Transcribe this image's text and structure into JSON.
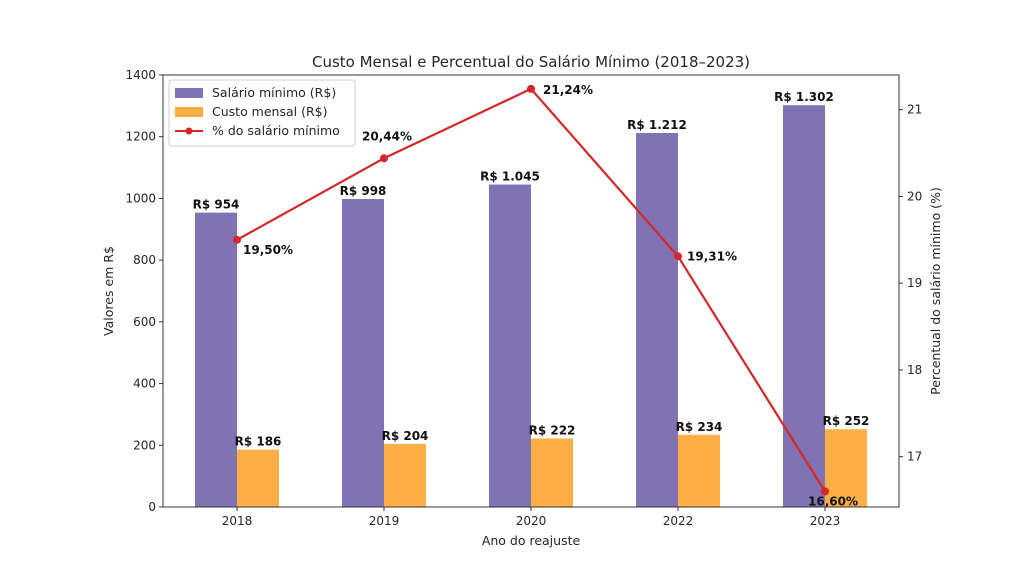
{
  "chart_data": {
    "type": "bar",
    "title": "Custo Mensal e Percentual do Salário Mínimo (2018–2023)",
    "xlabel": "Ano do reajuste",
    "ylabel": "Valores em R$",
    "ylabel_right": "Percentual do salário mínimo (%)",
    "categories": [
      "2018",
      "2019",
      "2020",
      "2022",
      "2023"
    ],
    "ylim": [
      0,
      1400
    ],
    "y_ticks": [
      0,
      200,
      400,
      600,
      800,
      1000,
      1200,
      1400
    ],
    "ylim_right": [
      16.42,
      21.4
    ],
    "y_ticks_right": [
      17,
      18,
      19,
      20,
      21
    ],
    "grid": false,
    "legend_position": "top-left",
    "series": [
      {
        "name": "Salário mínimo (R$)",
        "kind": "bar",
        "axis": "left",
        "color": "#8172b3",
        "values": [
          954,
          998,
          1045,
          1212,
          1302
        ],
        "labels": [
          "R$ 954",
          "R$ 998",
          "R$ 1.045",
          "R$ 1.212",
          "R$ 1.302"
        ]
      },
      {
        "name": "Custo mensal (R$)",
        "kind": "bar",
        "axis": "left",
        "color": "#fdae45",
        "values": [
          186,
          204,
          222,
          234,
          252
        ],
        "labels": [
          "R$ 186",
          "R$ 204",
          "R$ 222",
          "R$ 234",
          "R$ 252"
        ]
      },
      {
        "name": "% do salário mínimo",
        "kind": "line",
        "axis": "right",
        "color": "#d62728",
        "values": [
          19.5,
          20.44,
          21.24,
          19.31,
          16.6
        ],
        "labels": [
          "19,50%",
          "20,44%",
          "21,24%",
          "19,31%",
          "16,60%"
        ]
      }
    ]
  }
}
